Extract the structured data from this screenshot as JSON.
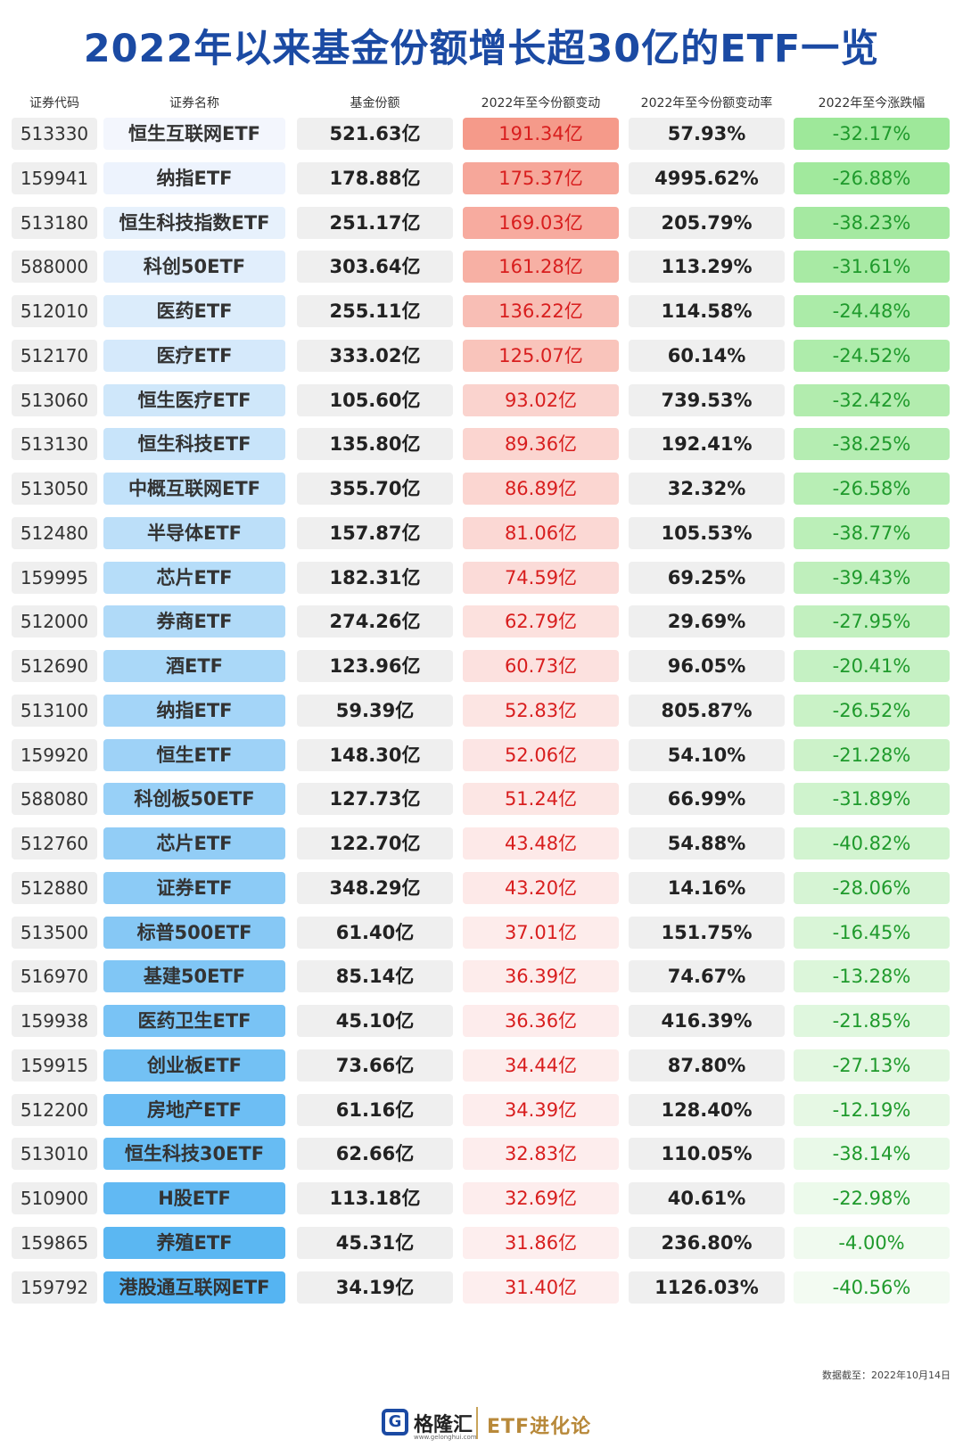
{
  "title": "2022年以来基金份额增长超30亿的ETF一览",
  "headers": {
    "code": "证券代码",
    "name": "证券名称",
    "share": "基金份额",
    "share_change": "2022年至今份额变动",
    "share_change_rate": "2022年至今份额变动率",
    "price_change": "2022年至今涨跌幅"
  },
  "chart_data": {
    "type": "table",
    "title": "2022年以来基金份额增长超30亿的ETF一览",
    "columns": [
      "证券代码",
      "证券名称",
      "基金份额",
      "2022年至今份额变动",
      "2022年至今份额变动率",
      "2022年至今涨跌幅"
    ],
    "rows": [
      {
        "code": "513330",
        "name": "恒生互联网ETF",
        "share": "521.63亿",
        "change": "191.34亿",
        "change_value": 191.34,
        "rate": "57.93%",
        "perf": "-32.17%"
      },
      {
        "code": "159941",
        "name": "纳指ETF",
        "share": "178.88亿",
        "change": "175.37亿",
        "change_value": 175.37,
        "rate": "4995.62%",
        "perf": "-26.88%"
      },
      {
        "code": "513180",
        "name": "恒生科技指数ETF",
        "share": "251.17亿",
        "change": "169.03亿",
        "change_value": 169.03,
        "rate": "205.79%",
        "perf": "-38.23%"
      },
      {
        "code": "588000",
        "name": "科创50ETF",
        "share": "303.64亿",
        "change": "161.28亿",
        "change_value": 161.28,
        "rate": "113.29%",
        "perf": "-31.61%"
      },
      {
        "code": "512010",
        "name": "医药ETF",
        "share": "255.11亿",
        "change": "136.22亿",
        "change_value": 136.22,
        "rate": "114.58%",
        "perf": "-24.48%"
      },
      {
        "code": "512170",
        "name": "医疗ETF",
        "share": "333.02亿",
        "change": "125.07亿",
        "change_value": 125.07,
        "rate": "60.14%",
        "perf": "-24.52%"
      },
      {
        "code": "513060",
        "name": "恒生医疗ETF",
        "share": "105.60亿",
        "change": "93.02亿",
        "change_value": 93.02,
        "rate": "739.53%",
        "perf": "-32.42%"
      },
      {
        "code": "513130",
        "name": "恒生科技ETF",
        "share": "135.80亿",
        "change": "89.36亿",
        "change_value": 89.36,
        "rate": "192.41%",
        "perf": "-38.25%"
      },
      {
        "code": "513050",
        "name": "中概互联网ETF",
        "share": "355.70亿",
        "change": "86.89亿",
        "change_value": 86.89,
        "rate": "32.32%",
        "perf": "-26.58%"
      },
      {
        "code": "512480",
        "name": "半导体ETF",
        "share": "157.87亿",
        "change": "81.06亿",
        "change_value": 81.06,
        "rate": "105.53%",
        "perf": "-38.77%"
      },
      {
        "code": "159995",
        "name": "芯片ETF",
        "share": "182.31亿",
        "change": "74.59亿",
        "change_value": 74.59,
        "rate": "69.25%",
        "perf": "-39.43%"
      },
      {
        "code": "512000",
        "name": "券商ETF",
        "share": "274.26亿",
        "change": "62.79亿",
        "change_value": 62.79,
        "rate": "29.69%",
        "perf": "-27.95%"
      },
      {
        "code": "512690",
        "name": "酒ETF",
        "share": "123.96亿",
        "change": "60.73亿",
        "change_value": 60.73,
        "rate": "96.05%",
        "perf": "-20.41%"
      },
      {
        "code": "513100",
        "name": "纳指ETF",
        "share": "59.39亿",
        "change": "52.83亿",
        "change_value": 52.83,
        "rate": "805.87%",
        "perf": "-26.52%"
      },
      {
        "code": "159920",
        "name": "恒生ETF",
        "share": "148.30亿",
        "change": "52.06亿",
        "change_value": 52.06,
        "rate": "54.10%",
        "perf": "-21.28%"
      },
      {
        "code": "588080",
        "name": "科创板50ETF",
        "share": "127.73亿",
        "change": "51.24亿",
        "change_value": 51.24,
        "rate": "66.99%",
        "perf": "-31.89%"
      },
      {
        "code": "512760",
        "name": "芯片ETF",
        "share": "122.70亿",
        "change": "43.48亿",
        "change_value": 43.48,
        "rate": "54.88%",
        "perf": "-40.82%"
      },
      {
        "code": "512880",
        "name": "证券ETF",
        "share": "348.29亿",
        "change": "43.20亿",
        "change_value": 43.2,
        "rate": "14.16%",
        "perf": "-28.06%"
      },
      {
        "code": "513500",
        "name": "标普500ETF",
        "share": "61.40亿",
        "change": "37.01亿",
        "change_value": 37.01,
        "rate": "151.75%",
        "perf": "-16.45%"
      },
      {
        "code": "516970",
        "name": "基建50ETF",
        "share": "85.14亿",
        "change": "36.39亿",
        "change_value": 36.39,
        "rate": "74.67%",
        "perf": "-13.28%"
      },
      {
        "code": "159938",
        "name": "医药卫生ETF",
        "share": "45.10亿",
        "change": "36.36亿",
        "change_value": 36.36,
        "rate": "416.39%",
        "perf": "-21.85%"
      },
      {
        "code": "159915",
        "name": "创业板ETF",
        "share": "73.66亿",
        "change": "34.44亿",
        "change_value": 34.44,
        "rate": "87.80%",
        "perf": "-27.13%"
      },
      {
        "code": "512200",
        "name": "房地产ETF",
        "share": "61.16亿",
        "change": "34.39亿",
        "change_value": 34.39,
        "rate": "128.40%",
        "perf": "-12.19%"
      },
      {
        "code": "513010",
        "name": "恒生科技30ETF",
        "share": "62.66亿",
        "change": "32.83亿",
        "change_value": 32.83,
        "rate": "110.05%",
        "perf": "-38.14%"
      },
      {
        "code": "510900",
        "name": "H股ETF",
        "share": "113.18亿",
        "change": "32.69亿",
        "change_value": 32.69,
        "rate": "40.61%",
        "perf": "-22.98%"
      },
      {
        "code": "159865",
        "name": "养殖ETF",
        "share": "45.31亿",
        "change": "31.86亿",
        "change_value": 31.86,
        "rate": "236.80%",
        "perf": "-4.00%"
      },
      {
        "code": "159792",
        "name": "港股通互联网ETF",
        "share": "34.19亿",
        "change": "31.40亿",
        "change_value": 31.4,
        "rate": "1126.03%",
        "perf": "-40.56%"
      }
    ]
  },
  "colors": {
    "title": "#1b4aa3",
    "change_text": "#d81e1e",
    "perf_text": "#1f9a2c",
    "change_bg_strong": "#f59a8a",
    "change_bg_weak": "#fdeeee",
    "perf_bg_strong": "#9ee89a",
    "perf_bg_weak": "#f3fbf2",
    "name_bg_light": "#f3f6fd",
    "name_bg_dark": "#55b4f2"
  },
  "footnote": "数据截至：2022年10月14日",
  "footer": {
    "logo_icon": "G-logo-icon",
    "logo_letter": "G",
    "brand": "格隆汇",
    "brand_url": "www.gelonghui.com",
    "column": "ETF进化论"
  }
}
